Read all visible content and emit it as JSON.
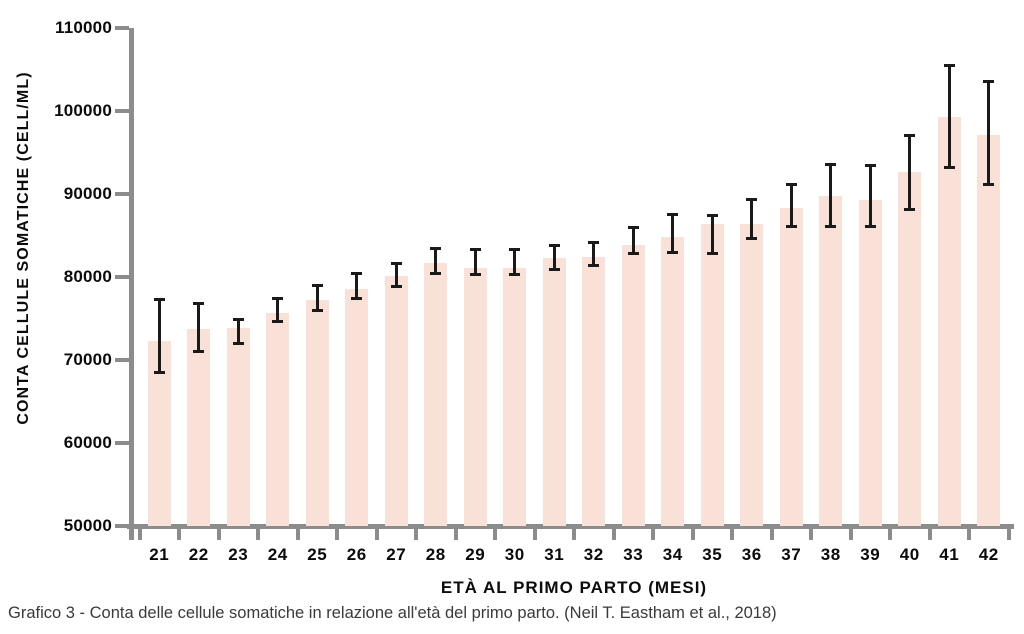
{
  "chart_data": {
    "type": "bar",
    "title": "",
    "xlabel": "ETÀ AL PRIMO PARTO (MESI)",
    "ylabel": "CONTA CELLULE SOMATICHE (CELL/ML)",
    "caption": "Grafico 3 - Conta delle cellule somatiche in relazione all'età del primo parto. (Neil T. Eastham et al., 2018)",
    "ylim": [
      50000,
      110000
    ],
    "yticks": [
      110000,
      100000,
      90000,
      80000,
      70000,
      60000,
      50000
    ],
    "grid": false,
    "legend": "none",
    "bar_color": "#fae1d7",
    "axis_color": "#8c8c8c",
    "error_color": "#1a1a1a",
    "categories": [
      21,
      22,
      23,
      24,
      25,
      26,
      27,
      28,
      29,
      30,
      31,
      32,
      33,
      34,
      35,
      36,
      37,
      38,
      39,
      40,
      41,
      42
    ],
    "values": [
      72300,
      73700,
      73800,
      75700,
      77200,
      78500,
      80100,
      81700,
      81100,
      81100,
      82300,
      82400,
      83900,
      84800,
      86400,
      86400,
      88300,
      89700,
      89300,
      92600,
      99300,
      97100
    ],
    "error_low": [
      68400,
      71000,
      71900,
      74600,
      75900,
      77300,
      78800,
      80400,
      80300,
      80200,
      80800,
      81300,
      82800,
      82900,
      82800,
      84600,
      86000,
      86000,
      86000,
      88100,
      93100,
      91100
    ],
    "error_high": [
      77300,
      76900,
      75000,
      77500,
      79000,
      80500,
      81700,
      83500,
      83400,
      83400,
      83800,
      84200,
      86000,
      87600,
      87500,
      89400,
      91200,
      93600,
      93500,
      97100,
      105600,
      103600
    ]
  }
}
